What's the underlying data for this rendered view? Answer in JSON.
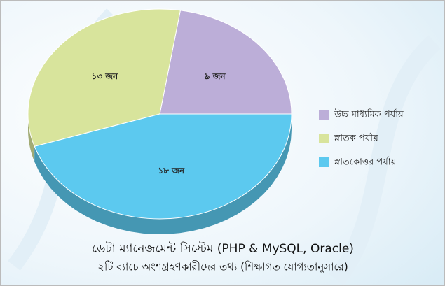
{
  "chart_data": {
    "type": "pie",
    "title": [
      "ডেটা ম্যানেজমেন্ট সিস্টেম (PHP & MySQL, Oracle)",
      "২টি ব্যাচে অংশগ্রহণকারীদের তথ্য (শিক্ষাগত যোগ্যতানুসারে)"
    ],
    "categories": [
      "উচ্চ মাধ্যমিক পর্যায়",
      "স্নাতক পর্যায়",
      "স্নাতকোত্তর পর্যায়"
    ],
    "values": [
      9,
      13,
      18
    ],
    "value_labels": [
      "৯ জন",
      "১৩ জন",
      "১৮ জন"
    ],
    "colors": [
      "#bcaed8",
      "#d8e49c",
      "#5cc9ef"
    ],
    "legend": "right"
  }
}
